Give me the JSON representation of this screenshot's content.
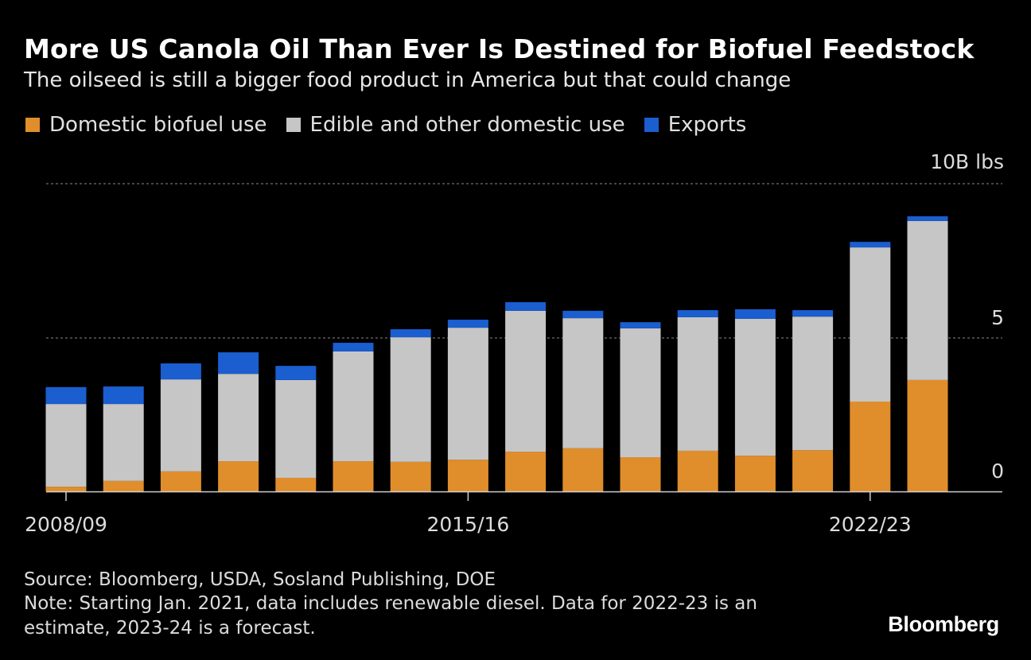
{
  "chart_data": {
    "type": "bar",
    "stacked": true,
    "title": "More US Canola Oil Than Ever Is Destined for Biofuel Feedstock",
    "subtitle": "The oilseed is still a bigger food product in America but that could change",
    "categories": [
      "2008/09",
      "2009/10",
      "2010/11",
      "2011/12",
      "2012/13",
      "2013/14",
      "2014/15",
      "2015/16",
      "2016/17",
      "2017/18",
      "2018/19",
      "2019/20",
      "2020/21",
      "2021/22",
      "2022/23",
      "2023/24"
    ],
    "x_tick_labels": [
      "2008/09",
      "2015/16",
      "2022/23"
    ],
    "y_tick_labels": [
      "10B lbs",
      "5",
      "0"
    ],
    "y_ticks": [
      10,
      5,
      0
    ],
    "ylim": [
      0,
      10
    ],
    "y_unit": "B lbs",
    "grid": "horizontal dotted",
    "legend_position": "top-left",
    "series": [
      {
        "name": "Domestic biofuel use",
        "color": "#e08e2b",
        "values": [
          0.15,
          0.34,
          0.65,
          0.98,
          0.44,
          0.98,
          0.96,
          1.03,
          1.29,
          1.4,
          1.11,
          1.32,
          1.16,
          1.34,
          2.92,
          3.62
        ]
      },
      {
        "name": "Edible and other domestic use",
        "color": "#c6c6c6",
        "values": [
          2.69,
          2.5,
          2.99,
          2.84,
          3.18,
          3.57,
          4.05,
          4.29,
          4.58,
          4.23,
          4.19,
          4.34,
          4.45,
          4.34,
          5.01,
          5.17
        ]
      },
      {
        "name": "Exports",
        "color": "#1a5ed0",
        "values": [
          0.55,
          0.57,
          0.52,
          0.7,
          0.46,
          0.28,
          0.26,
          0.26,
          0.28,
          0.24,
          0.2,
          0.23,
          0.31,
          0.21,
          0.18,
          0.15
        ]
      }
    ]
  },
  "footer": {
    "source": "Source: Bloomberg, USDA, Sosland Publishing, DOE",
    "note_line1": "Note: Starting Jan. 2021, data includes renewable diesel. Data for 2022-23 is an",
    "note_line2": "estimate, 2023-24 is a forecast.",
    "logo": "Bloomberg"
  }
}
